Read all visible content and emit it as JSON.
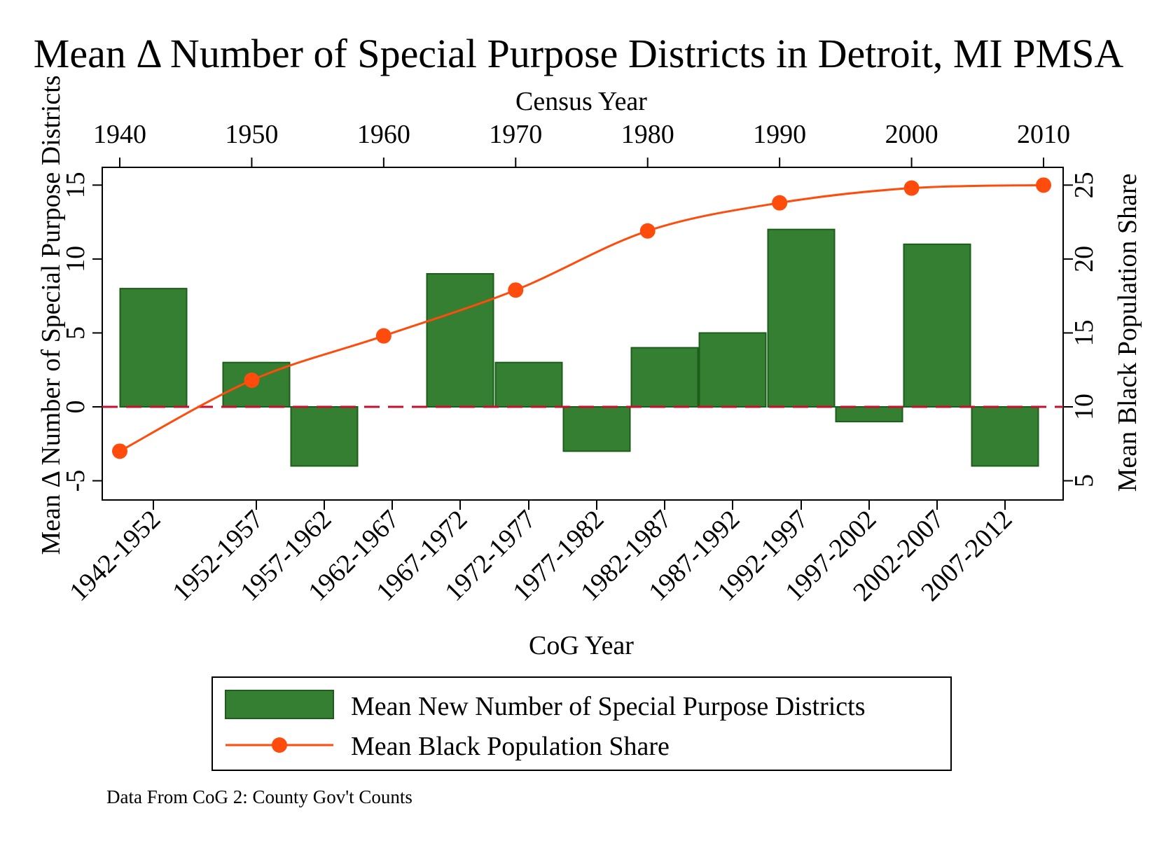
{
  "chart_data": {
    "type": "bar",
    "title": "Mean Δ Number of Special Purpose Districts in Detroit, MI PMSA",
    "xlabel": "CoG Year",
    "ylabel": "Mean Δ Number of Special Purpose Districts",
    "top_axis_label": "Census Year",
    "right_axis_label": "Mean Black Population Share",
    "note": "Data From CoG 2: County Gov't Counts",
    "bar_categories": [
      "1942-1952",
      "1952-1957",
      "1957-1962",
      "1962-1967",
      "1967-1972",
      "1972-1977",
      "1977-1982",
      "1982-1987",
      "1987-1992",
      "1992-1997",
      "1997-2002",
      "2002-2007",
      "2007-2012"
    ],
    "bars": [
      {
        "category": "1942-1952",
        "value": 8
      },
      {
        "category": "1952-1957",
        "value": 3
      },
      {
        "category": "1957-1962",
        "value": -4
      },
      {
        "category": "1967-1972",
        "value": 9
      },
      {
        "category": "1972-1977",
        "value": 3
      },
      {
        "category": "1977-1982",
        "value": -3
      },
      {
        "category": "1982-1987",
        "value": 4
      },
      {
        "category": "1987-1992",
        "value": 5
      },
      {
        "category": "1992-1997",
        "value": 12
      },
      {
        "category": "1997-2002",
        "value": -1
      },
      {
        "category": "2002-2007",
        "value": 11
      },
      {
        "category": "2007-2012",
        "value": -4
      }
    ],
    "ylim": [
      -6.3,
      16.2
    ],
    "yticks": [
      "-5",
      "0",
      "5",
      "10",
      "15"
    ],
    "census_years": [
      "1940",
      "1950",
      "1960",
      "1970",
      "1980",
      "1990",
      "2000",
      "2010"
    ],
    "line_series": {
      "name": "Mean Black Population Share",
      "x": [
        1940,
        1950,
        1960,
        1970,
        1980,
        1990,
        2000,
        2010
      ],
      "values": [
        7.0,
        11.8,
        14.8,
        17.9,
        21.9,
        23.8,
        24.8,
        25.0
      ]
    },
    "y2lim": [
      3.7,
      26.2
    ],
    "y2ticks": [
      "5",
      "10",
      "15",
      "20",
      "25"
    ],
    "reference_line": {
      "y": 0,
      "style": "dashed",
      "color": "#c8102e"
    },
    "legend": {
      "placement": "bottom",
      "entries": [
        "Mean New Number of Special Purpose Districts",
        "Mean Black Population Share"
      ]
    },
    "colors": {
      "bar_fill": "#357f32",
      "bar_stroke": "#1a5e1a",
      "line": "#ff4c0c",
      "marker": "#ff4c0c",
      "zero_line": "#c8102e"
    }
  }
}
